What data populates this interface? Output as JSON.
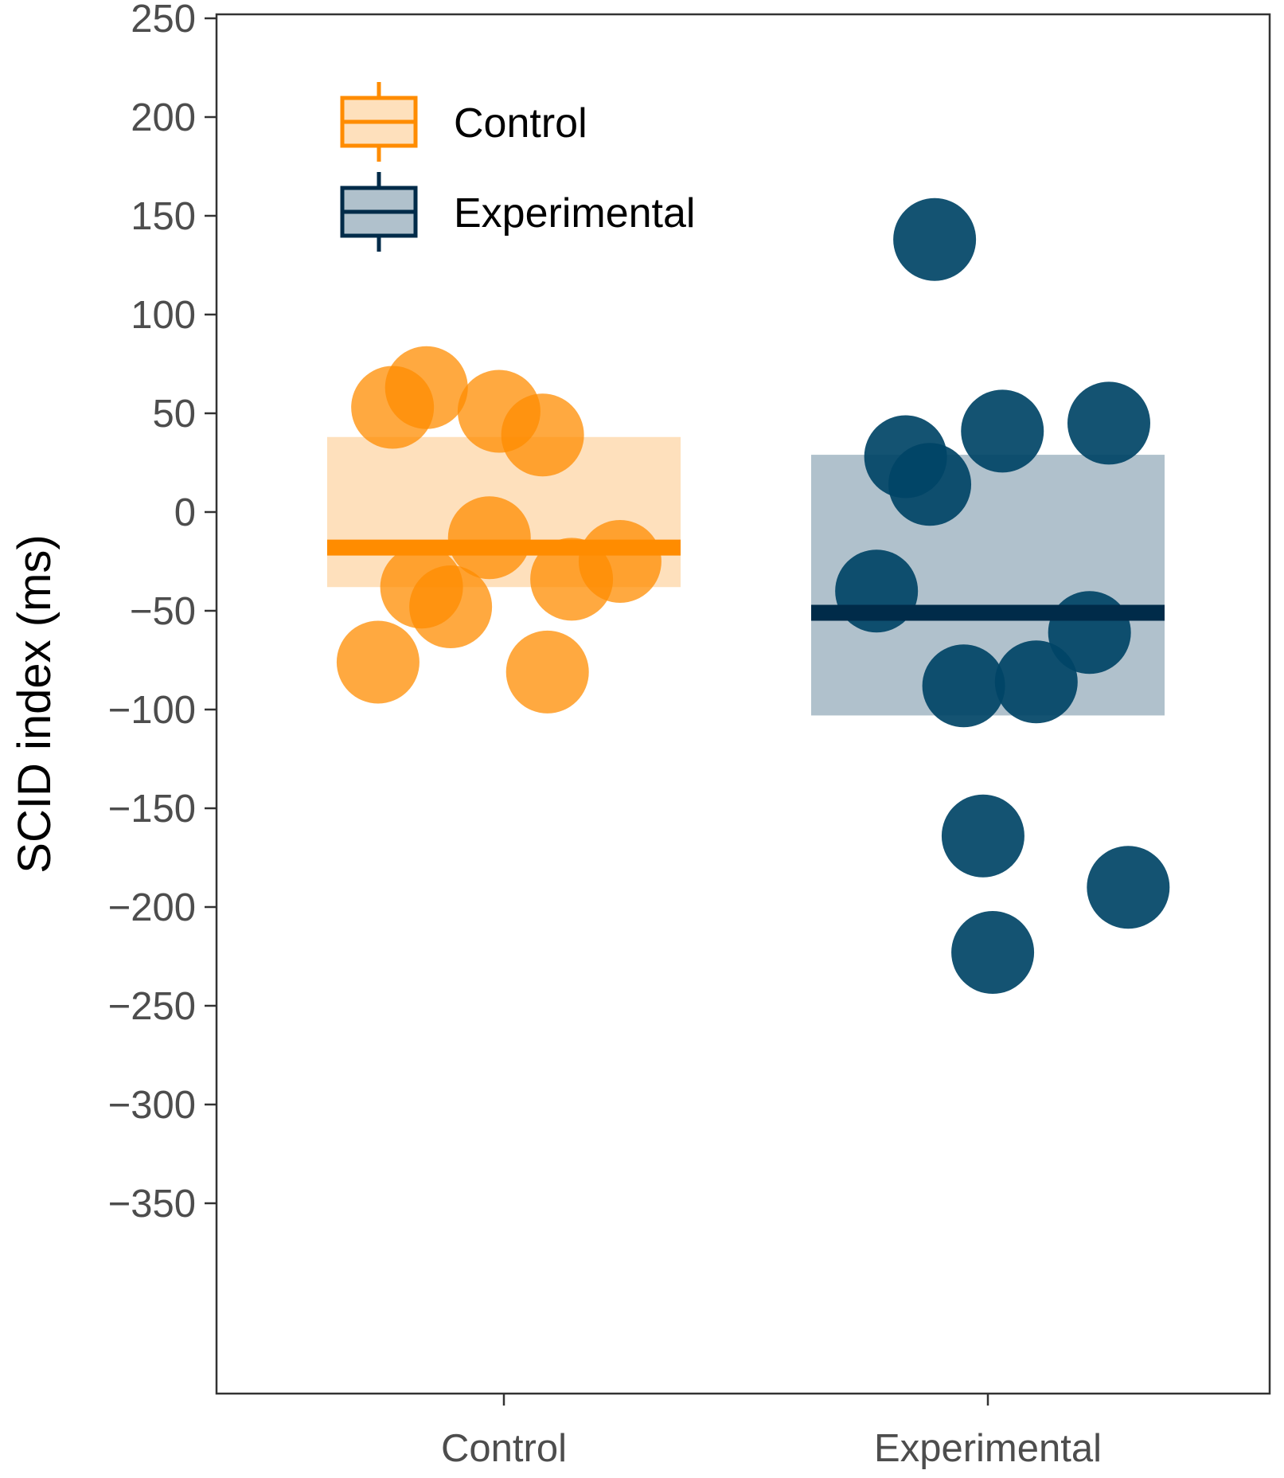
{
  "chart_data": {
    "type": "scatter",
    "title": "",
    "xlabel": "",
    "ylabel": "SCID index (ms)",
    "categories": [
      "Control",
      "Experimental"
    ],
    "ylim": [
      -400,
      290
    ],
    "yticks": [
      250,
      200,
      150,
      100,
      50,
      0,
      -50,
      -100,
      -150,
      -200,
      -250,
      -300,
      -350
    ],
    "ytick_labels": [
      "250",
      "200",
      "150",
      "100",
      "50",
      "0",
      "−50",
      "−100",
      "−150",
      "−200",
      "−250",
      "−300",
      "−350"
    ],
    "grid": false,
    "legend_placement": "top-left",
    "series": [
      {
        "name": "Control",
        "color": "#FF8C00",
        "box_fill": "#FEE0BC",
        "summary": {
          "lower": -38,
          "center": -18,
          "upper": 38
        },
        "points": [
          {
            "jitter": -0.23,
            "y": 53
          },
          {
            "jitter": -0.16,
            "y": 63
          },
          {
            "jitter": -0.01,
            "y": 51
          },
          {
            "jitter": 0.08,
            "y": 39
          },
          {
            "jitter": -0.03,
            "y": -13
          },
          {
            "jitter": -0.17,
            "y": -38
          },
          {
            "jitter": -0.11,
            "y": -48
          },
          {
            "jitter": 0.14,
            "y": -34
          },
          {
            "jitter": 0.24,
            "y": -25
          },
          {
            "jitter": -0.26,
            "y": -76
          },
          {
            "jitter": 0.09,
            "y": -81
          }
        ]
      },
      {
        "name": "Experimental",
        "color": "#004466",
        "box_fill": "#B0C1CC",
        "summary": {
          "lower": -103,
          "center": -51,
          "upper": 29
        },
        "points": [
          {
            "jitter": -0.11,
            "y": 138
          },
          {
            "jitter": -0.17,
            "y": 28
          },
          {
            "jitter": -0.12,
            "y": 14
          },
          {
            "jitter": 0.03,
            "y": 41
          },
          {
            "jitter": 0.25,
            "y": 45
          },
          {
            "jitter": -0.23,
            "y": -40
          },
          {
            "jitter": 0.21,
            "y": -61
          },
          {
            "jitter": -0.05,
            "y": -88
          },
          {
            "jitter": 0.1,
            "y": -86
          },
          {
            "jitter": -0.01,
            "y": -164
          },
          {
            "jitter": 0.29,
            "y": -190
          },
          {
            "jitter": 0.01,
            "y": -223
          }
        ]
      }
    ]
  }
}
